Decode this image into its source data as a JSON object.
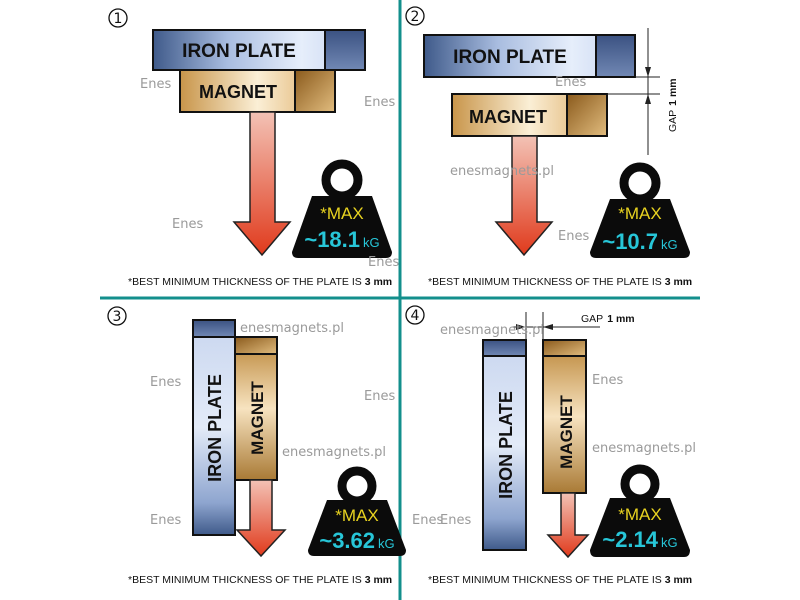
{
  "colors": {
    "divider": "#138f8c",
    "weight_body": "#0b0b0b",
    "max_text": "#e8d320",
    "value_text": "#27c6d8",
    "arrow": "#e03a1c"
  },
  "watermark": {
    "url": "enesmagnets.pl",
    "logo": "Enes"
  },
  "panels": [
    {
      "number": "1",
      "iron_label": "IRON PLATE",
      "magnet_label": "MAGNET",
      "max_label": "*MAX",
      "value": "~18.1",
      "unit": "kG",
      "note": "*BEST MINIMUM THICKNESS OF THE PLATE IS ",
      "note_bold": "3 mm"
    },
    {
      "number": "2",
      "iron_label": "IRON PLATE",
      "magnet_label": "MAGNET",
      "gap_label": "GAP",
      "gap_value": "1 mm",
      "max_label": "*MAX",
      "value": "~10.7",
      "unit": "kG",
      "note": "*BEST MINIMUM THICKNESS OF THE PLATE IS ",
      "note_bold": "3 mm"
    },
    {
      "number": "3",
      "iron_label": "IRON  PLATE",
      "magnet_label": "MAGNET",
      "max_label": "*MAX",
      "value": "~3.62",
      "unit": "kG",
      "note": "*BEST MINIMUM THICKNESS OF THE PLATE IS ",
      "note_bold": "3 mm"
    },
    {
      "number": "4",
      "iron_label": "IRON PLATE",
      "magnet_label": "MAGNET",
      "gap_label": "GAP",
      "gap_value": "1 mm",
      "max_label": "*MAX",
      "value": "~2.14",
      "unit": "kG",
      "note": "*BEST MINIMUM THICKNESS OF THE PLATE IS ",
      "note_bold": "3 mm"
    }
  ]
}
